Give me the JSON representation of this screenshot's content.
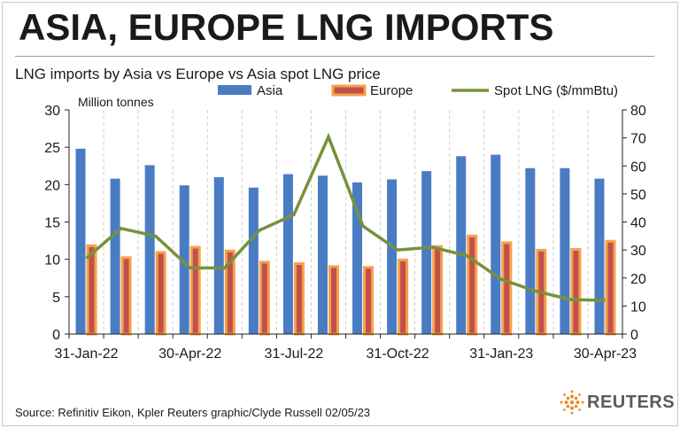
{
  "headline": "ASIA, EUROPE LNG IMPORTS",
  "subtitle": "LNG imports by Asia vs Europe vs Asia spot LNG price",
  "source": "Source: Refinitiv Eikon, Kpler    Reuters graphic/Clyde Russell 02/05/23",
  "logo_text": "REUTERS",
  "chart_data": {
    "type": "bar",
    "unit_label": "Million tonnes",
    "categories": [
      "Jan-22",
      "Feb-22",
      "Mar-22",
      "Apr-22",
      "May-22",
      "Jun-22",
      "Jul-22",
      "Aug-22",
      "Sep-22",
      "Oct-22",
      "Nov-22",
      "Dec-22",
      "Jan-23",
      "Feb-23",
      "Mar-23",
      "Apr-23"
    ],
    "x_tick_labels": [
      "31-Jan-22",
      "30-Apr-22",
      "31-Jul-22",
      "31-Oct-22",
      "31-Jan-23",
      "30-Apr-23"
    ],
    "x_tick_category_index": [
      0,
      3,
      6,
      9,
      12,
      15
    ],
    "series": [
      {
        "name": "Asia",
        "type": "bar",
        "axis": "left",
        "color": "#4a7cc4",
        "values": [
          24.8,
          20.8,
          22.6,
          19.9,
          21.0,
          19.6,
          21.4,
          21.2,
          20.3,
          20.7,
          21.8,
          23.8,
          24.0,
          22.2,
          22.2,
          20.8
        ]
      },
      {
        "name": "Europe",
        "type": "bar",
        "axis": "left",
        "color": "#c0504d",
        "border_color": "#f7a14a",
        "values": [
          12.0,
          10.4,
          11.1,
          11.8,
          11.3,
          9.8,
          9.6,
          9.2,
          9.1,
          10.1,
          11.9,
          13.3,
          12.4,
          11.4,
          11.5,
          12.6
        ]
      },
      {
        "name": "Spot LNG ($/mmBtu)",
        "type": "line",
        "axis": "right",
        "color": "#76923c",
        "values": [
          27.0,
          37.7,
          35.0,
          23.6,
          23.6,
          37.0,
          42.6,
          70.4,
          38.5,
          30.0,
          31.0,
          28.0,
          19.5,
          15.3,
          12.3,
          12.0
        ]
      }
    ],
    "y_left": {
      "min": 0,
      "max": 30,
      "ticks": [
        0,
        5,
        10,
        15,
        20,
        25,
        30
      ]
    },
    "y_right": {
      "min": 0,
      "max": 80,
      "ticks": [
        0,
        10,
        20,
        30,
        40,
        50,
        60,
        70,
        80
      ]
    },
    "grid": "vertical-dashed",
    "legend_position": "top"
  }
}
